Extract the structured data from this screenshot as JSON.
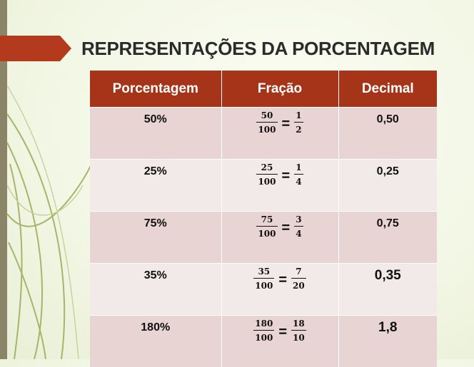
{
  "title": "REPRESENTAÇÕES DA PORCENTAGEM",
  "colors": {
    "header": "#a63418",
    "row_dark": "#e7d4d3",
    "row_light": "#f2e9e9",
    "arrow": "#b33a1c"
  },
  "table": {
    "headers": [
      "Porcentagem",
      "Fração",
      "Decimal"
    ],
    "rows": [
      {
        "percent": "50%",
        "frac_num": "50",
        "frac_den": "100",
        "simp_num": "1",
        "simp_den": "2",
        "decimal": "0,50"
      },
      {
        "percent": "25%",
        "frac_num": "25",
        "frac_den": "100",
        "simp_num": "1",
        "simp_den": "4",
        "decimal": "0,25"
      },
      {
        "percent": "75%",
        "frac_num": "75",
        "frac_den": "100",
        "simp_num": "3",
        "simp_den": "4",
        "decimal": "0,75"
      },
      {
        "percent": "35%",
        "frac_num": "35",
        "frac_den": "100",
        "simp_num": "7",
        "simp_den": "20",
        "decimal": "0,35"
      },
      {
        "percent": "180%",
        "frac_num": "180",
        "frac_den": "100",
        "simp_num": "18",
        "simp_den": "10",
        "decimal": "1,8"
      }
    ]
  }
}
